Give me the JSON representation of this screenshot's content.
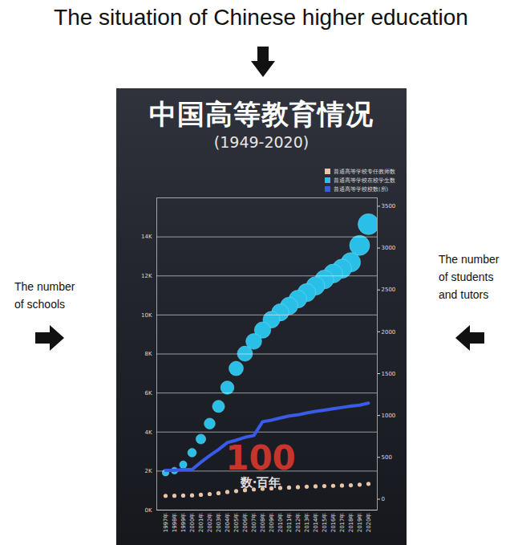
{
  "title": "The situation of Chinese higher education",
  "annotations": [
    {
      "text": "The number of schools",
      "axis": "y"
    },
    {
      "text": "The number of students and tutors",
      "axis": "y2"
    }
  ],
  "chart_data": {
    "type": "line",
    "title": "中国高等教育情况",
    "subtitle": "(1949-2020)",
    "annotations": [
      "100",
      "数·百年"
    ],
    "categories": [
      "1997年",
      "1998年",
      "1999年",
      "2000年",
      "2001年",
      "2002年",
      "2003年",
      "2004年",
      "2005年",
      "2006年",
      "2007年",
      "2008年",
      "2009年",
      "2010年",
      "2011年",
      "2012年",
      "2013年",
      "2014年",
      "2015年",
      "2016年",
      "2017年",
      "2018年",
      "2019年",
      "2020年"
    ],
    "series": [
      {
        "name": "普通高等学校专任教师数",
        "type": "scatter",
        "color": "#e8c4a8",
        "axis": "y2",
        "values": [
          40,
          41,
          43,
          46,
          53,
          62,
          72,
          86,
          97,
          108,
          117,
          124,
          130,
          134,
          139,
          144,
          150,
          154,
          157,
          160,
          163,
          167,
          174,
          183
        ]
      },
      {
        "name": "普通高等学校在校学生数",
        "type": "bubble",
        "color": "#29bfe6",
        "axis": "y2",
        "values": [
          317,
          341,
          413,
          556,
          719,
          903,
          1109,
          1333,
          1562,
          1739,
          1885,
          2021,
          2145,
          2232,
          2309,
          2391,
          2468,
          2548,
          2625,
          2696,
          2754,
          2831,
          3032,
          3285
        ]
      },
      {
        "name": "普通高等学校校数(所)",
        "type": "line",
        "color": "#3a5be8",
        "axis": "y",
        "values": [
          2040,
          2040,
          2080,
          2080,
          2450,
          2790,
          3100,
          3460,
          3580,
          3730,
          3820,
          4530,
          4610,
          4720,
          4820,
          4880,
          4980,
          5060,
          5120,
          5190,
          5260,
          5330,
          5380,
          5480
        ]
      }
    ],
    "ylim": [
      0,
      16000
    ],
    "yticks": [
      {
        "value": 0,
        "label": "0K"
      },
      {
        "value": 2000,
        "label": "2K"
      },
      {
        "value": 4000,
        "label": "4K"
      },
      {
        "value": 6000,
        "label": "6K"
      },
      {
        "value": 8000,
        "label": "8K"
      },
      {
        "value": 10000,
        "label": "10K"
      },
      {
        "value": 12000,
        "label": "12K"
      },
      {
        "value": 14000,
        "label": "14K"
      }
    ],
    "y2lim": [
      -130,
      3600
    ],
    "y2ticks": [
      0,
      500,
      1000,
      1500,
      2000,
      2500,
      3000,
      3500
    ],
    "grid": true,
    "legend": "top-right"
  }
}
